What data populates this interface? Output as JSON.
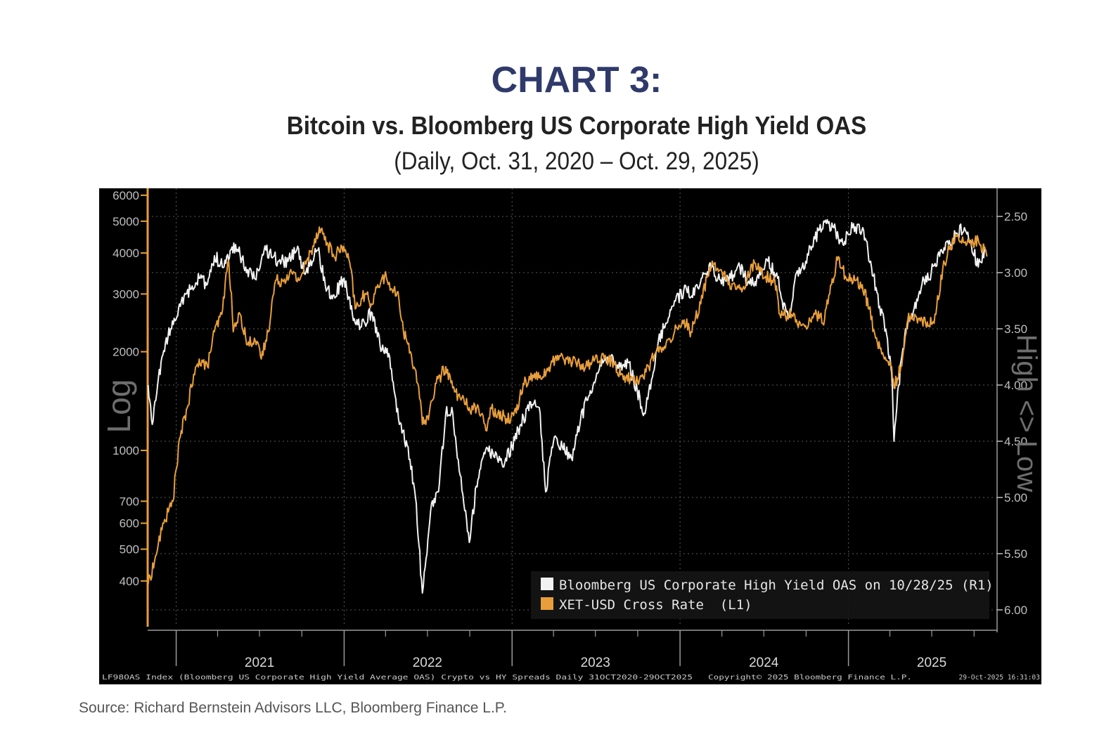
{
  "header": {
    "heading": "CHART 3:",
    "title": "Bitcoin vs. Bloomberg US Corporate High Yield OAS",
    "subtitle": "(Daily, Oct. 31, 2020 – Oct. 29, 2025)"
  },
  "source": "Source: Richard Bernstein Advisors LLC, Bloomberg Finance L.P.",
  "colors": {
    "background": "#000000",
    "oas": "#f2f2f2",
    "btc": "#e89e3a",
    "heading": "#2f3a6b",
    "axis_text": "#bfbfbf"
  },
  "chart_data": {
    "type": "line",
    "left_axis": {
      "label": "Log",
      "scale": "log",
      "range": [
        290,
        6300
      ],
      "ticks": [
        400,
        500,
        600,
        700,
        1000,
        2000,
        3000,
        4000,
        5000,
        6000
      ],
      "tick_labels": [
        "400",
        "500",
        "600",
        "700",
        "1000",
        "2000",
        "3000",
        "4000",
        "5000",
        "6000"
      ]
    },
    "right_axis": {
      "label": "High <> Low",
      "scale": "linear-inverted",
      "range": [
        2.25,
        6.15
      ],
      "ticks": [
        2.5,
        3.0,
        3.5,
        4.0,
        4.5,
        5.0,
        5.5,
        6.0
      ],
      "tick_labels": [
        "2.50",
        "3.00",
        "3.50",
        "4.00",
        "4.50",
        "5.00",
        "5.50",
        "6.00"
      ]
    },
    "x_axis": {
      "range": [
        "2020-10-31",
        "2025-11-20"
      ],
      "year_labels": [
        "2021",
        "2022",
        "2023",
        "2024",
        "2025"
      ]
    },
    "grid": true,
    "legend_position": "bottom-right",
    "series": [
      {
        "name": "Bloomberg US Corporate High Yield OAS on 10/28/25 (R1)",
        "axis": "right",
        "color": "#f2f2f2",
        "x": [
          "2020-11-01",
          "2020-11-10",
          "2020-12-01",
          "2020-12-20",
          "2021-01-10",
          "2021-02-01",
          "2021-02-20",
          "2021-03-10",
          "2021-03-25",
          "2021-04-15",
          "2021-05-10",
          "2021-06-01",
          "2021-06-20",
          "2021-07-15",
          "2021-08-10",
          "2021-09-01",
          "2021-09-20",
          "2021-10-10",
          "2021-11-05",
          "2021-11-25",
          "2021-12-10",
          "2022-01-01",
          "2022-01-25",
          "2022-02-15",
          "2022-03-01",
          "2022-03-20",
          "2022-04-10",
          "2022-05-01",
          "2022-05-20",
          "2022-06-05",
          "2022-06-20",
          "2022-07-10",
          "2022-07-25",
          "2022-08-10",
          "2022-08-25",
          "2022-09-10",
          "2022-09-30",
          "2022-10-15",
          "2022-11-01",
          "2022-11-20",
          "2022-12-10",
          "2023-01-01",
          "2023-01-20",
          "2023-02-10",
          "2023-03-01",
          "2023-03-15",
          "2023-04-01",
          "2023-04-20",
          "2023-05-10",
          "2023-05-30",
          "2023-06-20",
          "2023-07-10",
          "2023-07-31",
          "2023-08-20",
          "2023-09-10",
          "2023-09-30",
          "2023-10-15",
          "2023-10-31",
          "2023-11-15",
          "2023-12-01",
          "2023-12-20",
          "2024-01-15",
          "2024-02-01",
          "2024-02-20",
          "2024-03-10",
          "2024-03-31",
          "2024-04-20",
          "2024-05-10",
          "2024-05-31",
          "2024-06-20",
          "2024-07-10",
          "2024-07-31",
          "2024-08-10",
          "2024-08-25",
          "2024-09-10",
          "2024-09-30",
          "2024-10-20",
          "2024-11-10",
          "2024-11-30",
          "2024-12-20",
          "2025-01-10",
          "2025-02-01",
          "2025-02-20",
          "2025-03-10",
          "2025-03-25",
          "2025-04-05",
          "2025-04-10",
          "2025-04-20",
          "2025-05-05",
          "2025-05-20",
          "2025-06-10",
          "2025-06-30",
          "2025-07-20",
          "2025-08-10",
          "2025-08-25",
          "2025-09-10",
          "2025-09-25",
          "2025-10-10",
          "2025-10-28"
        ],
        "values": [
          4.0,
          4.35,
          3.75,
          3.5,
          3.3,
          3.15,
          3.05,
          3.1,
          2.85,
          2.95,
          2.75,
          2.95,
          3.05,
          2.8,
          2.9,
          2.9,
          2.8,
          3.0,
          2.8,
          3.15,
          3.2,
          3.05,
          3.45,
          3.45,
          3.35,
          3.65,
          3.75,
          4.35,
          4.55,
          5.0,
          5.85,
          5.05,
          4.95,
          4.25,
          4.25,
          4.8,
          5.4,
          4.9,
          4.6,
          4.6,
          4.7,
          4.55,
          4.35,
          4.15,
          4.2,
          4.95,
          4.5,
          4.55,
          4.65,
          4.3,
          4.05,
          3.85,
          3.75,
          3.85,
          3.8,
          4.05,
          4.25,
          3.95,
          3.6,
          3.45,
          3.25,
          3.15,
          3.2,
          3.0,
          2.95,
          3.1,
          3.05,
          2.95,
          3.1,
          3.05,
          2.9,
          3.05,
          3.25,
          3.4,
          3.0,
          2.9,
          2.7,
          2.55,
          2.6,
          2.75,
          2.6,
          2.6,
          2.95,
          3.3,
          3.55,
          3.9,
          4.5,
          4.0,
          3.5,
          3.4,
          3.1,
          3.0,
          2.8,
          2.75,
          2.65,
          2.6,
          2.75,
          2.95,
          2.8
        ]
      },
      {
        "name": "XET-USD Cross Rate  (L1)",
        "axis": "left",
        "color": "#e89e3a",
        "x": [
          "2020-11-01",
          "2020-11-15",
          "2020-12-05",
          "2020-12-25",
          "2021-01-10",
          "2021-01-25",
          "2021-02-10",
          "2021-02-20",
          "2021-03-10",
          "2021-03-25",
          "2021-04-10",
          "2021-04-25",
          "2021-05-05",
          "2021-05-20",
          "2021-06-05",
          "2021-06-20",
          "2021-07-05",
          "2021-07-20",
          "2021-08-05",
          "2021-08-20",
          "2021-09-05",
          "2021-09-25",
          "2021-10-10",
          "2021-10-25",
          "2021-11-08",
          "2021-11-25",
          "2021-12-10",
          "2021-12-31",
          "2022-01-15",
          "2022-01-25",
          "2022-02-15",
          "2022-03-01",
          "2022-03-15",
          "2022-03-30",
          "2022-04-15",
          "2022-04-30",
          "2022-05-10",
          "2022-05-25",
          "2022-06-10",
          "2022-06-20",
          "2022-07-05",
          "2022-07-20",
          "2022-08-10",
          "2022-08-25",
          "2022-09-10",
          "2022-09-30",
          "2022-10-20",
          "2022-11-05",
          "2022-11-15",
          "2022-12-01",
          "2022-12-20",
          "2023-01-10",
          "2023-01-25",
          "2023-02-15",
          "2023-03-05",
          "2023-03-20",
          "2023-04-10",
          "2023-04-30",
          "2023-05-20",
          "2023-06-10",
          "2023-06-30",
          "2023-07-20",
          "2023-08-10",
          "2023-08-25",
          "2023-09-15",
          "2023-10-05",
          "2023-10-25",
          "2023-11-10",
          "2023-11-30",
          "2023-12-20",
          "2024-01-10",
          "2024-01-25",
          "2024-02-15",
          "2024-03-05",
          "2024-03-15",
          "2024-04-01",
          "2024-04-15",
          "2024-05-01",
          "2024-05-20",
          "2024-06-05",
          "2024-06-25",
          "2024-07-05",
          "2024-07-25",
          "2024-08-05",
          "2024-08-25",
          "2024-09-10",
          "2024-09-30",
          "2024-10-20",
          "2024-11-10",
          "2024-11-25",
          "2024-12-10",
          "2024-12-25",
          "2025-01-15",
          "2025-01-31",
          "2025-02-15",
          "2025-03-01",
          "2025-03-20",
          "2025-04-05",
          "2025-04-10",
          "2025-04-25",
          "2025-05-10",
          "2025-05-25",
          "2025-06-10",
          "2025-06-25",
          "2025-07-10",
          "2025-07-25",
          "2025-08-10",
          "2025-08-25",
          "2025-09-10",
          "2025-09-25",
          "2025-10-10",
          "2025-10-29"
        ],
        "values": [
          390,
          460,
          600,
          700,
          1100,
          1350,
          1700,
          1900,
          1800,
          2300,
          2600,
          3800,
          2300,
          2600,
          2100,
          2200,
          1900,
          2300,
          3300,
          3300,
          3500,
          3300,
          3700,
          4200,
          4800,
          4300,
          3900,
          4200,
          3600,
          2700,
          3000,
          2800,
          3200,
          3400,
          3100,
          2900,
          2300,
          2000,
          1600,
          1200,
          1300,
          1600,
          1800,
          1550,
          1450,
          1350,
          1350,
          1150,
          1350,
          1300,
          1250,
          1300,
          1600,
          1700,
          1650,
          1750,
          1950,
          1900,
          1850,
          1800,
          1900,
          1900,
          1850,
          1700,
          1650,
          1650,
          1800,
          2000,
          2050,
          2300,
          2500,
          2300,
          2800,
          3600,
          3700,
          3500,
          3200,
          3100,
          3100,
          3700,
          3500,
          3400,
          3300,
          2600,
          2600,
          2500,
          2400,
          2600,
          2500,
          3200,
          3900,
          3400,
          3300,
          3200,
          2700,
          2200,
          1900,
          1800,
          1550,
          1800,
          2500,
          2600,
          2500,
          2400,
          2600,
          3600,
          4200,
          4500,
          4300,
          4200,
          4400,
          3900
        ]
      }
    ],
    "footer_left": "LF98OAS Index (Bloomberg US Corporate High Yield Average OAS) Crypto vs HY Spreads Daily 31OCT2020-29OCT2025",
    "footer_copyright": "Copyright© 2025 Bloomberg Finance L.P.",
    "footer_timestamp": "29-Oct-2025 16:31:03"
  }
}
